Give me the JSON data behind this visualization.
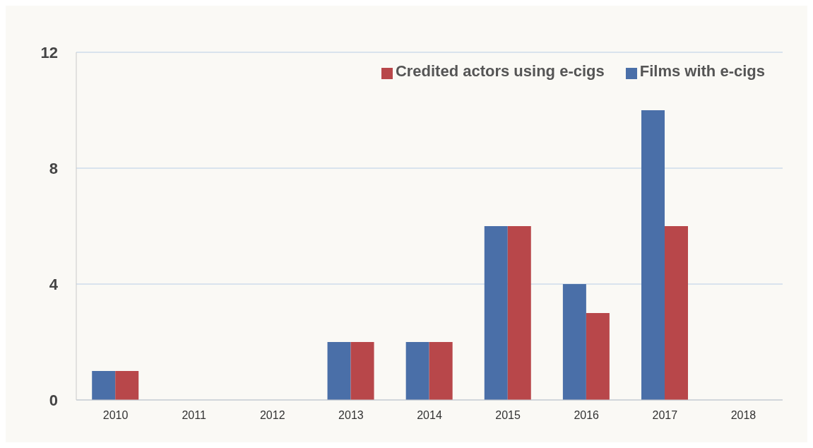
{
  "chart_data": {
    "type": "bar",
    "categories": [
      "2010",
      "2011",
      "2012",
      "2013",
      "2014",
      "2015",
      "2016",
      "2017",
      "2018"
    ],
    "series": [
      {
        "name": "Films with e-cigs",
        "color": "#4a6fa8",
        "values": [
          1,
          0,
          0,
          2,
          2,
          6,
          4,
          10,
          0
        ]
      },
      {
        "name": "Credited actors using e-cigs",
        "color": "#b8474a",
        "values": [
          1,
          0,
          0,
          2,
          2,
          6,
          3,
          6,
          0
        ]
      }
    ],
    "ylim": [
      0,
      12
    ],
    "yticks": [
      0,
      4,
      8,
      12
    ],
    "grid": "y",
    "legend": "top right"
  }
}
